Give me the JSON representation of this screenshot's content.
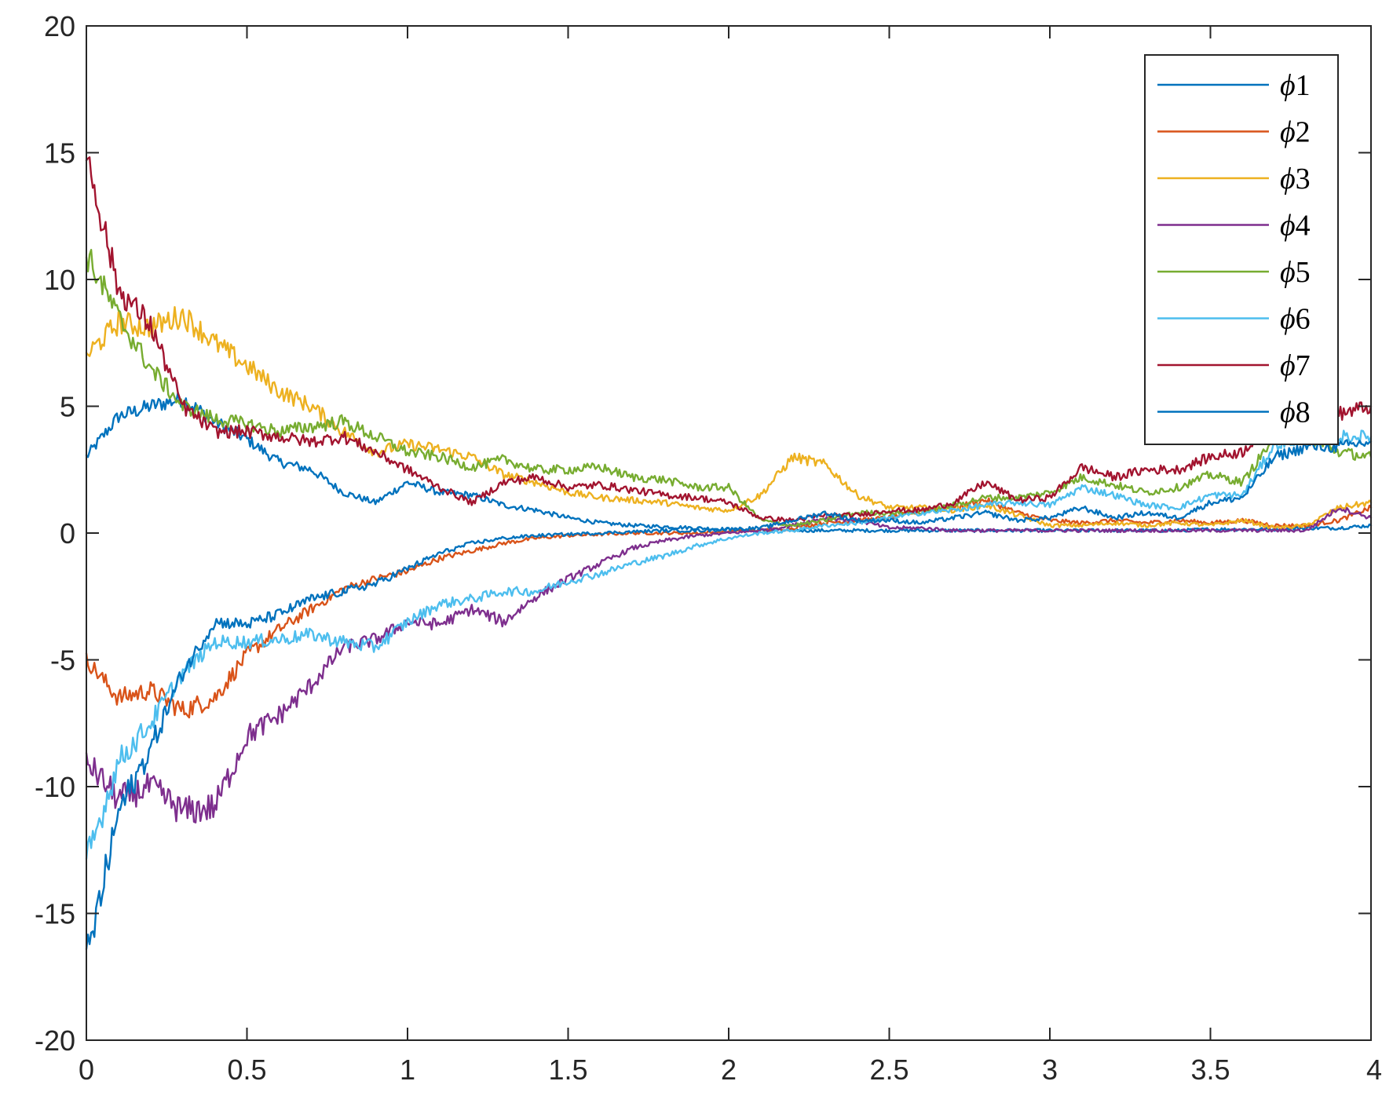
{
  "chart_data": {
    "type": "line",
    "title": "",
    "xlabel": "",
    "ylabel": "",
    "xlim": [
      0,
      4
    ],
    "ylim": [
      -20,
      20
    ],
    "xticks": [
      0,
      0.5,
      1,
      1.5,
      2,
      2.5,
      3,
      3.5,
      4
    ],
    "xtick_labels": [
      "0",
      "0.5",
      "1",
      "1.5",
      "2",
      "2.5",
      "3",
      "3.5",
      "4"
    ],
    "yticks": [
      -20,
      -15,
      -10,
      -5,
      0,
      5,
      10,
      15,
      20
    ],
    "ytick_labels": [
      "-20",
      "-15",
      "-10",
      "-5",
      "0",
      "5",
      "10",
      "15",
      "20"
    ],
    "grid": false,
    "legend_position": "top-right",
    "x": [
      0,
      0.1,
      0.2,
      0.3,
      0.4,
      0.5,
      0.6,
      0.7,
      0.8,
      0.9,
      1.0,
      1.1,
      1.2,
      1.3,
      1.4,
      1.5,
      1.6,
      1.7,
      1.8,
      1.9,
      2.0,
      2.1,
      2.2,
      2.3,
      2.4,
      2.5,
      2.6,
      2.7,
      2.8,
      2.9,
      3.0,
      3.1,
      3.2,
      3.3,
      3.4,
      3.5,
      3.6,
      3.7,
      3.8,
      3.9,
      4.0
    ],
    "series": [
      {
        "name": "ϕ1",
        "color": "#0072BD",
        "values": [
          3.0,
          4.6,
          5.0,
          5.3,
          4.4,
          3.7,
          2.8,
          2.5,
          1.6,
          1.2,
          2.0,
          1.6,
          1.5,
          1.1,
          0.9,
          0.6,
          0.4,
          0.3,
          0.25,
          0.2,
          0.15,
          0.1,
          0.1,
          0.1,
          0.1,
          0.1,
          0.1,
          0.1,
          0.1,
          0.1,
          0.1,
          0.1,
          0.1,
          0.1,
          0.1,
          0.15,
          0.15,
          0.15,
          0.2,
          0.2,
          0.3
        ]
      },
      {
        "name": "ϕ2",
        "color": "#D95319",
        "values": [
          -5.0,
          -6.5,
          -6.2,
          -7.0,
          -6.5,
          -4.8,
          -3.8,
          -3.0,
          -2.2,
          -1.8,
          -1.5,
          -1.0,
          -0.7,
          -0.4,
          -0.2,
          -0.1,
          -0.05,
          0.0,
          0.0,
          0.0,
          0.05,
          0.1,
          0.2,
          0.4,
          0.5,
          0.6,
          0.9,
          1.0,
          1.3,
          0.8,
          0.5,
          0.4,
          0.5,
          0.4,
          0.5,
          0.4,
          0.5,
          0.3,
          0.3,
          0.5,
          1.0
        ]
      },
      {
        "name": "ϕ3",
        "color": "#EDB120",
        "values": [
          7.0,
          8.3,
          8.1,
          8.6,
          7.5,
          6.6,
          5.6,
          5.0,
          4.0,
          3.2,
          3.5,
          3.3,
          3.0,
          2.3,
          2.0,
          1.6,
          1.4,
          1.3,
          1.2,
          1.0,
          0.9,
          1.5,
          3.0,
          2.7,
          1.5,
          1.0,
          1.0,
          0.9,
          1.1,
          0.7,
          0.3,
          0.3,
          0.4,
          0.3,
          0.4,
          0.3,
          0.5,
          0.2,
          0.3,
          1.0,
          1.2
        ]
      },
      {
        "name": "ϕ4",
        "color": "#7E2F8E",
        "values": [
          -9.0,
          -10.5,
          -10.0,
          -11.0,
          -10.8,
          -8.0,
          -7.2,
          -6.0,
          -4.5,
          -4.2,
          -3.5,
          -3.6,
          -3.0,
          -3.5,
          -2.5,
          -1.8,
          -1.2,
          -0.6,
          -0.3,
          -0.1,
          0.0,
          0.1,
          0.3,
          0.6,
          0.5,
          0.2,
          0.2,
          0.1,
          0.1,
          0.1,
          0.1,
          0.1,
          0.1,
          0.1,
          0.1,
          0.1,
          0.1,
          0.1,
          0.1,
          1.0,
          0.6
        ]
      },
      {
        "name": "ϕ5",
        "color": "#77AC30",
        "values": [
          11.0,
          8.5,
          6.5,
          5.0,
          4.5,
          4.3,
          4.0,
          4.2,
          4.4,
          3.8,
          3.2,
          3.0,
          2.6,
          2.9,
          2.5,
          2.5,
          2.6,
          2.2,
          2.1,
          1.8,
          1.8,
          0.5,
          0.3,
          0.5,
          0.8,
          0.8,
          0.8,
          1.1,
          1.4,
          1.4,
          1.6,
          2.2,
          1.9,
          1.6,
          1.8,
          2.3,
          2.0,
          3.8,
          3.8,
          3.2,
          3.0
        ]
      },
      {
        "name": "ϕ6",
        "color": "#4DBEEE",
        "values": [
          -13.0,
          -9.0,
          -7.5,
          -5.5,
          -4.3,
          -4.3,
          -4.2,
          -4.0,
          -4.3,
          -4.5,
          -3.5,
          -2.8,
          -2.6,
          -2.3,
          -2.3,
          -1.9,
          -1.6,
          -1.2,
          -0.9,
          -0.5,
          -0.2,
          0.0,
          0.1,
          0.3,
          0.4,
          0.6,
          0.8,
          0.9,
          1.1,
          1.2,
          1.1,
          1.8,
          1.5,
          1.1,
          1.0,
          1.5,
          1.5,
          3.5,
          3.7,
          3.8,
          3.8
        ]
      },
      {
        "name": "ϕ7",
        "color": "#A2142F",
        "values": [
          15.0,
          9.6,
          8.2,
          5.0,
          4.0,
          4.0,
          3.8,
          3.6,
          3.8,
          3.2,
          2.5,
          1.8,
          1.2,
          2.0,
          2.2,
          1.8,
          1.9,
          1.7,
          1.5,
          1.4,
          1.2,
          0.6,
          0.5,
          0.7,
          0.7,
          0.9,
          0.9,
          1.2,
          2.0,
          1.3,
          1.4,
          2.6,
          2.2,
          2.5,
          2.5,
          3.0,
          3.2,
          4.6,
          4.9,
          4.7,
          5.0
        ]
      },
      {
        "name": "ϕ8",
        "color": "#0072BD",
        "values": [
          -17.0,
          -11.0,
          -8.5,
          -5.5,
          -3.5,
          -3.6,
          -3.2,
          -2.6,
          -2.3,
          -2.0,
          -1.4,
          -0.8,
          -0.4,
          -0.2,
          -0.1,
          -0.05,
          0.0,
          0.05,
          0.1,
          0.1,
          0.15,
          0.2,
          0.5,
          0.8,
          0.5,
          0.5,
          0.4,
          0.6,
          0.8,
          0.5,
          0.6,
          1.0,
          0.6,
          0.8,
          0.6,
          1.2,
          1.4,
          3.0,
          3.4,
          3.4,
          3.6
        ]
      }
    ]
  }
}
